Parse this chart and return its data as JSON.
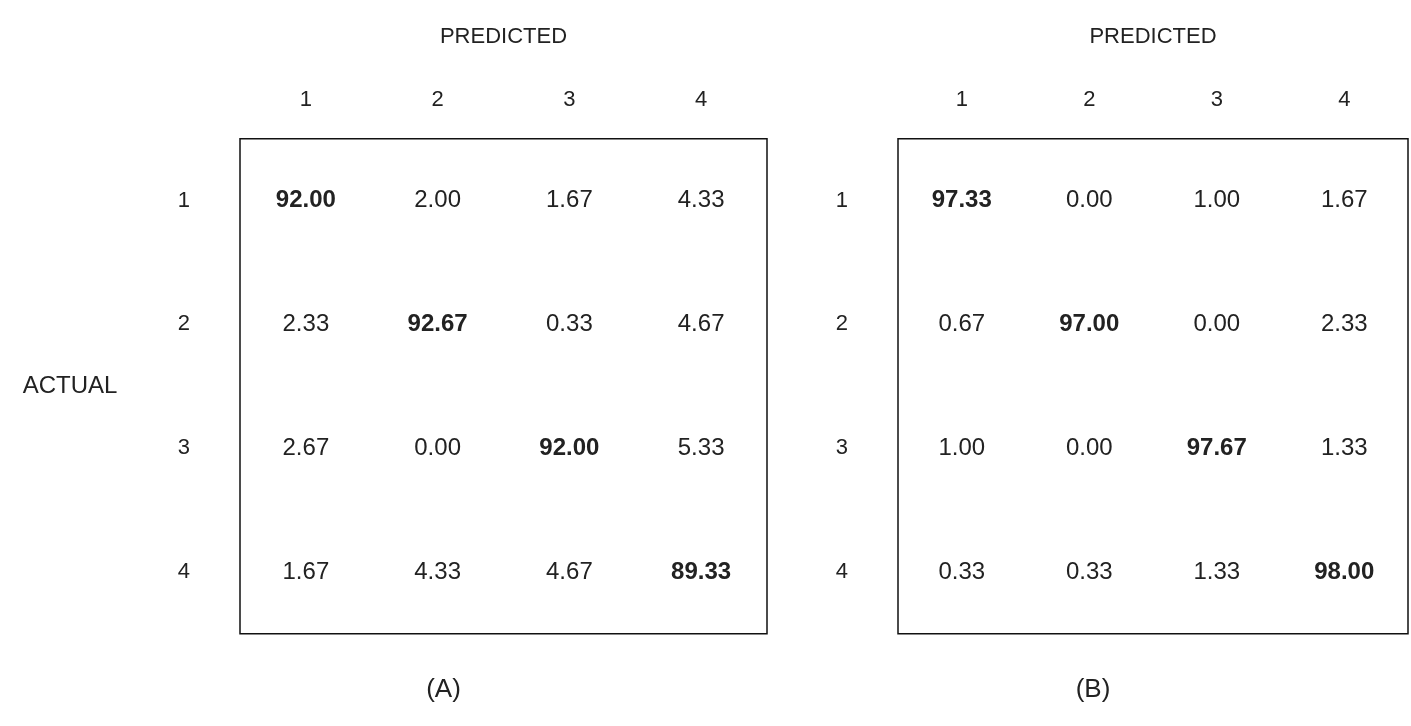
{
  "chart_data": [
    {
      "type": "heatmap",
      "title": "(A)",
      "xlabel": "PREDICTED",
      "ylabel": "ACTUAL",
      "categories": [
        "1",
        "2",
        "3",
        "4"
      ],
      "y_categories": [
        "1",
        "2",
        "3",
        "4"
      ],
      "cells": [
        [
          92.0,
          2.0,
          1.67,
          4.33
        ],
        [
          2.33,
          92.67,
          0.33,
          4.67
        ],
        [
          2.67,
          0.0,
          92.0,
          5.33
        ],
        [
          1.67,
          4.33,
          4.67,
          89.33
        ]
      ],
      "cell_labels": [
        [
          "92.00",
          "2.00",
          "1.67",
          "4.33"
        ],
        [
          "2.33",
          "92.67",
          "0.33",
          "4.67"
        ],
        [
          "2.67",
          "0.00",
          "92.00",
          "5.33"
        ],
        [
          "1.67",
          "4.33",
          "4.67",
          "89.33"
        ]
      ]
    },
    {
      "type": "heatmap",
      "title": "(B)",
      "xlabel": "PREDICTED",
      "categories": [
        "1",
        "2",
        "3",
        "4"
      ],
      "y_categories": [
        "1",
        "2",
        "3",
        "4"
      ],
      "cells": [
        [
          97.33,
          0.0,
          1.0,
          1.67
        ],
        [
          0.67,
          97.0,
          0.0,
          2.33
        ],
        [
          1.0,
          0.0,
          97.67,
          1.33
        ],
        [
          0.33,
          0.33,
          1.33,
          98.0
        ]
      ],
      "cell_labels": [
        [
          "97.33",
          "0.00",
          "1.00",
          "1.67"
        ],
        [
          "0.67",
          "97.00",
          "0.00",
          "2.33"
        ],
        [
          "1.00",
          "0.00",
          "97.67",
          "1.33"
        ],
        [
          "0.33",
          "0.33",
          "1.33",
          "98.00"
        ]
      ]
    }
  ]
}
